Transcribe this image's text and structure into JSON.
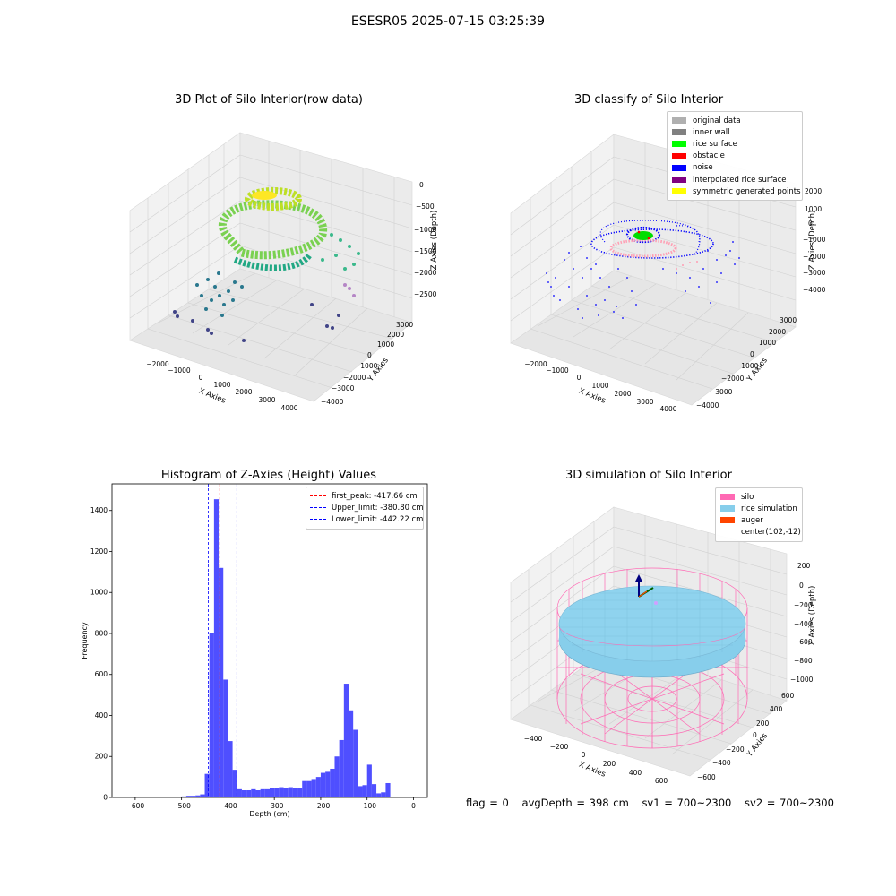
{
  "suptitle": "ESESR05 2025-07-15 03:25:39",
  "panels": {
    "raw": {
      "title": "3D Plot of Silo Interior(row data)",
      "xlabel": "X Axies",
      "ylabel": "Y Axies",
      "zlabel": "Z Axies (Depth)",
      "xticks": [
        "−2000",
        "−1000",
        "0",
        "1000",
        "2000",
        "3000",
        "4000"
      ],
      "yticks": [
        "3000",
        "2000",
        "1000",
        "0",
        "−1000",
        "−2000",
        "−3000",
        "−4000"
      ],
      "zticks": [
        "0",
        "−500",
        "−1000",
        "−1500",
        "−2000",
        "−2500"
      ]
    },
    "classify": {
      "title": "3D classify of Silo Interior",
      "xlabel": "X Axies",
      "ylabel": "Y Axies",
      "zlabel": "Z Axies (Depth)",
      "xticks": [
        "−2000",
        "−1000",
        "0",
        "1000",
        "2000",
        "3000",
        "4000"
      ],
      "yticks": [
        "3000",
        "2000",
        "1000",
        "0",
        "−1000",
        "−2000",
        "−3000",
        "−4000"
      ],
      "zticks": [
        "2000",
        "1000",
        "0",
        "−1000",
        "−2000",
        "−3000",
        "−4000"
      ],
      "legend": [
        {
          "label": "original data",
          "color": "#b0b0b0"
        },
        {
          "label": "inner wall",
          "color": "#808080"
        },
        {
          "label": "rice surface",
          "color": "#00ff00"
        },
        {
          "label": "obstacle",
          "color": "#ff0000"
        },
        {
          "label": "noise",
          "color": "#0000ff"
        },
        {
          "label": "interpolated rice surface",
          "color": "#800080"
        },
        {
          "label": "symmetric generated points",
          "color": "#ffff00"
        }
      ]
    },
    "histogram": {
      "title": "Histogram of Z-Axies (Height) Values",
      "xlabel": "Depth (cm)",
      "ylabel": "Frequency",
      "legend": [
        {
          "label": "first_peak: -417.66 cm",
          "color": "#ff0000"
        },
        {
          "label": "Upper_limit: -380.80 cm",
          "color": "#0000ff"
        },
        {
          "label": "Lower_limit: -442.22 cm",
          "color": "#0000ff"
        }
      ]
    },
    "simulation": {
      "title": "3D simulation of Silo Interior",
      "xlabel": "X Axies",
      "ylabel": "Y Axies",
      "zlabel": "Z Axies (Depth)",
      "xticks": [
        "−400",
        "−200",
        "0",
        "200",
        "400",
        "600"
      ],
      "yticks": [
        "600",
        "400",
        "200",
        "0",
        "−200",
        "−400",
        "−600"
      ],
      "zticks": [
        "200",
        "0",
        "−200",
        "−400",
        "−600",
        "−800",
        "−1000"
      ],
      "legend": [
        {
          "label": "silo",
          "color": "#ff69b4"
        },
        {
          "label": "rice simulation",
          "color": "#87ceeb"
        },
        {
          "label": "auger",
          "color": "#ff4500"
        },
        {
          "label": "center(102,-12)",
          "color": ""
        }
      ]
    }
  },
  "status": {
    "flag": "flag = 0",
    "avg_depth": "avgDepth = 398 cm",
    "sv1": "sv1 = 700~2300",
    "sv2": "sv2 = 700~2300"
  },
  "chart_data": [
    {
      "type": "scatter",
      "title": "3D Plot of Silo Interior(row data)",
      "projection": "3d",
      "xlabel": "X Axies",
      "ylabel": "Y Axies",
      "zlabel": "Z Axies (Depth)",
      "xlim": [
        -2500,
        4500
      ],
      "ylim": [
        -4500,
        3500
      ],
      "zlim": [
        -2800,
        0
      ],
      "colormap": "viridis"
    },
    {
      "type": "scatter",
      "title": "3D classify of Silo Interior",
      "projection": "3d",
      "xlabel": "X Axies",
      "ylabel": "Y Axies",
      "zlabel": "Z Axies (Depth)",
      "xlim": [
        -2500,
        4500
      ],
      "ylim": [
        -4500,
        3500
      ],
      "zlim": [
        -4500,
        2000
      ],
      "series": [
        {
          "name": "original data",
          "color": "#b0b0b0"
        },
        {
          "name": "inner wall",
          "color": "#808080"
        },
        {
          "name": "rice surface",
          "color": "#00ff00"
        },
        {
          "name": "obstacle",
          "color": "#ff0000"
        },
        {
          "name": "noise",
          "color": "#0000ff"
        },
        {
          "name": "interpolated rice surface",
          "color": "#800080"
        },
        {
          "name": "symmetric generated points",
          "color": "#ffff00"
        }
      ]
    },
    {
      "type": "bar",
      "subtype": "histogram",
      "title": "Histogram of Z-Axies (Height) Values",
      "xlabel": "Depth (cm)",
      "ylabel": "Frequency",
      "xlim": [
        -650,
        30
      ],
      "ylim": [
        0,
        1530
      ],
      "xticks": [
        -600,
        -500,
        -400,
        -300,
        -200,
        -100,
        0
      ],
      "yticks": [
        0,
        200,
        400,
        600,
        800,
        1000,
        1200,
        1400
      ],
      "bin_width": 10,
      "bins": [
        [
          -500,
          5
        ],
        [
          -490,
          8
        ],
        [
          -480,
          8
        ],
        [
          -470,
          10
        ],
        [
          -460,
          15
        ],
        [
          -450,
          115
        ],
        [
          -440,
          800
        ],
        [
          -430,
          1455
        ],
        [
          -420,
          1120
        ],
        [
          -410,
          575
        ],
        [
          -400,
          275
        ],
        [
          -390,
          135
        ],
        [
          -380,
          40
        ],
        [
          -370,
          35
        ],
        [
          -360,
          35
        ],
        [
          -350,
          40
        ],
        [
          -340,
          35
        ],
        [
          -330,
          40
        ],
        [
          -320,
          40
        ],
        [
          -310,
          45
        ],
        [
          -300,
          45
        ],
        [
          -290,
          50
        ],
        [
          -280,
          48
        ],
        [
          -270,
          50
        ],
        [
          -260,
          48
        ],
        [
          -250,
          45
        ],
        [
          -240,
          80
        ],
        [
          -230,
          80
        ],
        [
          -220,
          90
        ],
        [
          -210,
          100
        ],
        [
          -200,
          120
        ],
        [
          -190,
          125
        ],
        [
          -180,
          140
        ],
        [
          -170,
          200
        ],
        [
          -160,
          280
        ],
        [
          -150,
          555
        ],
        [
          -140,
          425
        ],
        [
          -130,
          330
        ],
        [
          -120,
          55
        ],
        [
          -110,
          60
        ],
        [
          -100,
          160
        ],
        [
          -90,
          65
        ],
        [
          -80,
          20
        ],
        [
          -70,
          25
        ],
        [
          -60,
          70
        ]
      ],
      "vlines": [
        {
          "name": "first_peak",
          "x": -417.66,
          "color": "#ff0000"
        },
        {
          "name": "Upper_limit",
          "x": -380.8,
          "color": "#0000ff"
        },
        {
          "name": "Lower_limit",
          "x": -442.22,
          "color": "#0000ff"
        }
      ],
      "bar_color": "#4f4fff",
      "legend_position": "top-right"
    },
    {
      "type": "scatter",
      "title": "3D simulation of Silo Interior",
      "projection": "3d",
      "xlabel": "X Axies",
      "ylabel": "Y Axies",
      "zlabel": "Z Axies (Depth)",
      "xlim": [
        -500,
        700
      ],
      "ylim": [
        -700,
        700
      ],
      "zlim": [
        -1000,
        300
      ],
      "series": [
        {
          "name": "silo",
          "color": "#ff69b4"
        },
        {
          "name": "rice simulation",
          "color": "#87ceeb"
        },
        {
          "name": "auger",
          "color": "#ff4500"
        }
      ],
      "center": [
        102,
        -12
      ]
    }
  ]
}
